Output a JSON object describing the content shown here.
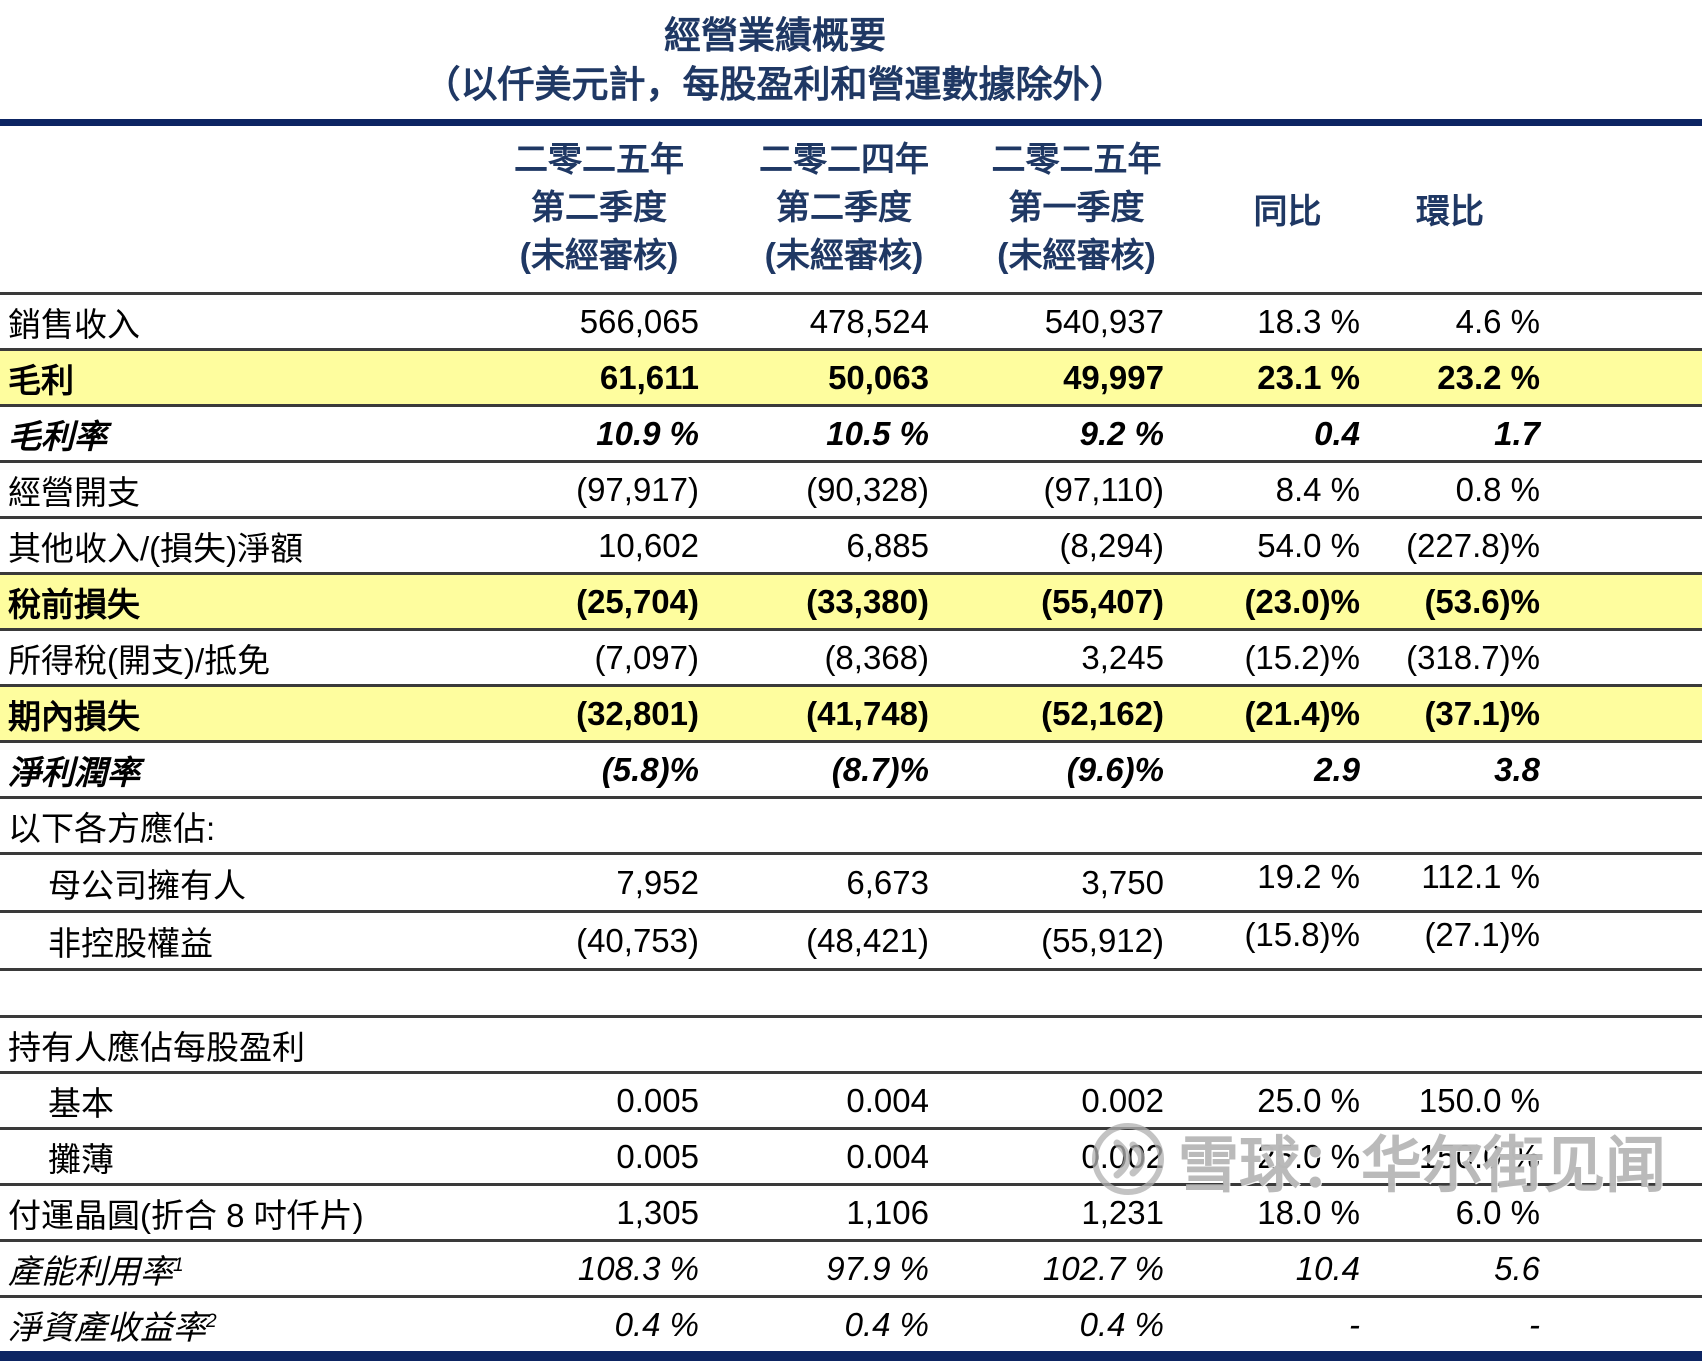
{
  "title": "經營業績概要",
  "subtitle": "（以仟美元計，每股盈利和營運數據除外）",
  "colors": {
    "navy_text": "#1F3864",
    "navy_rule": "#0D2563",
    "row_line": "#3A3A3A",
    "highlight_yellow": "#FEFD9E",
    "watermark_gray": "#B0B0B0"
  },
  "header": {
    "col1_lines": [
      "二零二五年",
      "第二季度",
      "(未經審核)"
    ],
    "col2_lines": [
      "二零二四年",
      "第二季度",
      "(未經審核)"
    ],
    "col3_lines": [
      "二零二五年",
      "第一季度",
      "(未經審核)"
    ],
    "yoy_label": "同比",
    "qoq_label": "環比"
  },
  "rows": [
    {
      "label": "銷售收入",
      "cells": [
        "566,065",
        "478,524",
        "540,937",
        "18.3 %",
        "4.6 %"
      ],
      "style": "normal"
    },
    {
      "label": "毛利",
      "cells": [
        "61,611",
        "50,063",
        "49,997",
        "23.1 %",
        "23.2 %"
      ],
      "style": "highlight"
    },
    {
      "label": "毛利率",
      "cells": [
        "10.9 %",
        "10.5 %",
        "9.2 %",
        "0.4",
        "1.7"
      ],
      "style": "ratio"
    },
    {
      "label": "經營開支",
      "cells": [
        "(97,917)",
        "(90,328)",
        "(97,110)",
        "8.4 %",
        "0.8 %"
      ],
      "style": "normal"
    },
    {
      "label": "其他收入/(損失)淨額",
      "cells": [
        "10,602",
        "6,885",
        "(8,294)",
        "54.0 %",
        "(227.8)%"
      ],
      "style": "normal"
    },
    {
      "label": "稅前損失",
      "cells": [
        "(25,704)",
        "(33,380)",
        "(55,407)",
        "(23.0)%",
        "(53.6)%"
      ],
      "style": "highlight"
    },
    {
      "label": "所得稅(開支)/抵免",
      "cells": [
        "(7,097)",
        "(8,368)",
        "3,245",
        "(15.2)%",
        "(318.7)%"
      ],
      "style": "normal"
    },
    {
      "label": "期內損失",
      "cells": [
        "(32,801)",
        "(41,748)",
        "(52,162)",
        "(21.4)%",
        "(37.1)%"
      ],
      "style": "highlight"
    },
    {
      "label": "淨利潤率",
      "cells": [
        "(5.8)%",
        "(8.7)%",
        "(9.6)%",
        "2.9",
        "3.8"
      ],
      "style": "ratio"
    },
    {
      "label": "以下各方應佔:",
      "cells": [
        "",
        "",
        "",
        "",
        ""
      ],
      "style": "section"
    },
    {
      "label": "母公司擁有人",
      "cells": [
        "7,952",
        "6,673",
        "3,750",
        "19.2 %",
        "112.1 %"
      ],
      "style": "normal",
      "indent": true,
      "raised": true
    },
    {
      "label": "非控股權益",
      "cells": [
        "(40,753)",
        "(48,421)",
        "(55,912)",
        "(15.8)%",
        "(27.1)%"
      ],
      "style": "normal",
      "indent": true,
      "raised": true
    },
    {
      "label": "",
      "cells": [
        "",
        "",
        "",
        "",
        ""
      ],
      "style": "spacer"
    },
    {
      "label": "持有人應佔每股盈利",
      "cells": [
        "",
        "",
        "",
        "",
        ""
      ],
      "style": "section"
    },
    {
      "label": "基本",
      "cells": [
        "0.005",
        "0.004",
        "0.002",
        "25.0 %",
        "150.0 %"
      ],
      "style": "normal",
      "indent": true
    },
    {
      "label": "攤薄",
      "cells": [
        "0.005",
        "0.004",
        "0.002",
        "25.0 %",
        "150.0 %"
      ],
      "style": "normal",
      "indent": true
    },
    {
      "label": "付運晶圓(折合 8 吋仟片)",
      "cells": [
        "1,305",
        "1,106",
        "1,231",
        "18.0 %",
        "6.0 %"
      ],
      "style": "normal"
    },
    {
      "label": "產能利用率",
      "label_sup": "1",
      "cells": [
        "108.3 %",
        "97.9 %",
        "102.7 %",
        "10.4",
        "5.6"
      ],
      "style": "italic"
    },
    {
      "label": "淨資產收益率",
      "label_sup": "2",
      "cells": [
        "0.4 %",
        "0.4 %",
        "0.4 %",
        "-",
        "-"
      ],
      "style": "italic"
    }
  ],
  "watermark": {
    "logo": "xueqiu-snowball-icon",
    "text": "雪球：华尔街见闻"
  }
}
